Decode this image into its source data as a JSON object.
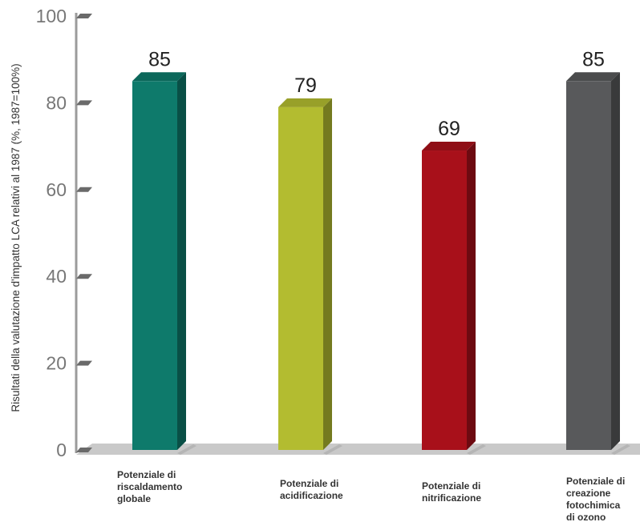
{
  "chart_data": {
    "type": "bar",
    "ylabel": "Risultati della valutazione d'impatto LCA relativi al 1987 (%, 1987=100%)",
    "ylim": [
      0,
      100
    ],
    "yticks": [
      0,
      20,
      40,
      60,
      80,
      100
    ],
    "categories": [
      "Potenziale di\nriscaldamento\nglobale",
      "Potenziale di\nacidificazione",
      "Potenziale di\nnitrificazione",
      "Potenziale di\ncreazione\nfotochimica\ndi ozono"
    ],
    "values": [
      85,
      79,
      69,
      85
    ],
    "value_labels": [
      "85",
      "79",
      "69",
      "85"
    ],
    "colors": [
      "#0e7a6b",
      "#b3bc30",
      "#a8101a",
      "#58595b"
    ],
    "grid": false,
    "legend": "none"
  }
}
